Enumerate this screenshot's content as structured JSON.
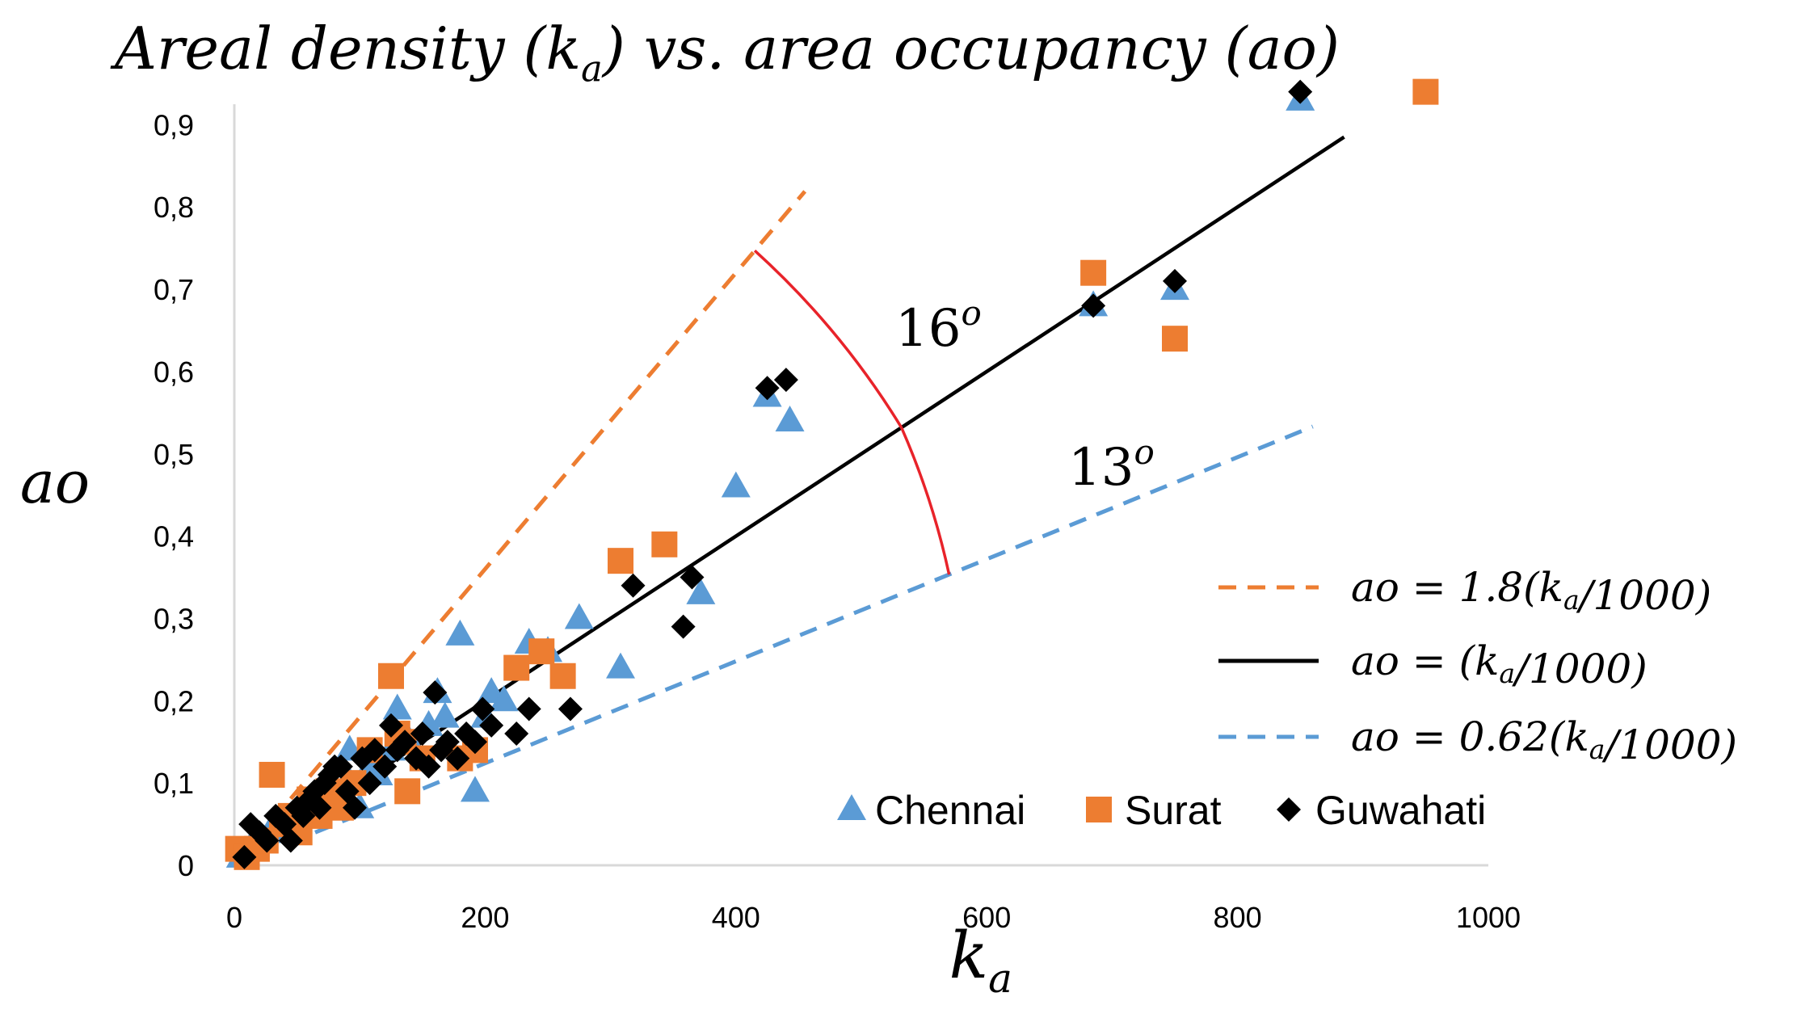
{
  "chart_data": {
    "type": "scatter",
    "title": "Areal density (k_a) vs. area occupancy (ao)",
    "xlabel": "k_a",
    "ylabel": "ao",
    "xlim": [
      0,
      1000
    ],
    "ylim": [
      0,
      0.92
    ],
    "x_ticks": [
      "0",
      "200",
      "400",
      "600",
      "800",
      "1000"
    ],
    "y_ticks": [
      "0",
      "0,1",
      "0,2",
      "0,3",
      "0,4",
      "0,5",
      "0,6",
      "0,7",
      "0,8",
      "0,9"
    ],
    "grid": false,
    "legend_position": "right",
    "reference_lines": [
      {
        "label": "ao = 1.8(k_a/1000)",
        "slope": 0.0018,
        "x_range": [
          0,
          455
        ],
        "color": "#ED7D31",
        "style": "dashed"
      },
      {
        "label": "ao = (k_a/1000)",
        "slope": 0.001,
        "x_range": [
          0,
          885
        ],
        "color": "#000000",
        "style": "solid"
      },
      {
        "label": "ao = 0.62(k_a/1000)",
        "slope": 0.00062,
        "x_range": [
          0,
          860
        ],
        "color": "#5B9BD5",
        "style": "dashed"
      }
    ],
    "angle_annotations": [
      {
        "label": "16",
        "superscript": "o",
        "x_from": 415,
        "x_to": 532
      },
      {
        "label": "13",
        "superscript": "o",
        "x_from": 532,
        "x_to": 570
      }
    ],
    "series": [
      {
        "name": "Chennai",
        "marker": "triangle",
        "color": "#5B9BD5",
        "points": [
          [
            5,
            0.01
          ],
          [
            12,
            0.02
          ],
          [
            20,
            0.03
          ],
          [
            28,
            0.04
          ],
          [
            35,
            0.05
          ],
          [
            42,
            0.04
          ],
          [
            48,
            0.06
          ],
          [
            55,
            0.07
          ],
          [
            62,
            0.08
          ],
          [
            70,
            0.09
          ],
          [
            78,
            0.1
          ],
          [
            85,
            0.12
          ],
          [
            92,
            0.14
          ],
          [
            100,
            0.07
          ],
          [
            108,
            0.12
          ],
          [
            115,
            0.11
          ],
          [
            125,
            0.14
          ],
          [
            130,
            0.19
          ],
          [
            140,
            0.15
          ],
          [
            155,
            0.17
          ],
          [
            162,
            0.21
          ],
          [
            168,
            0.18
          ],
          [
            180,
            0.28
          ],
          [
            192,
            0.09
          ],
          [
            200,
            0.18
          ],
          [
            205,
            0.21
          ],
          [
            215,
            0.2
          ],
          [
            235,
            0.27
          ],
          [
            250,
            0.26
          ],
          [
            275,
            0.3
          ],
          [
            308,
            0.24
          ],
          [
            372,
            0.33
          ],
          [
            400,
            0.46
          ],
          [
            425,
            0.57
          ],
          [
            443,
            0.54
          ],
          [
            685,
            0.68
          ],
          [
            750,
            0.7
          ],
          [
            850,
            0.93
          ]
        ]
      },
      {
        "name": "Surat",
        "marker": "square",
        "color": "#ED7D31",
        "points": [
          [
            3,
            0.02
          ],
          [
            10,
            0.01
          ],
          [
            18,
            0.02
          ],
          [
            25,
            0.03
          ],
          [
            30,
            0.11
          ],
          [
            38,
            0.05
          ],
          [
            45,
            0.06
          ],
          [
            52,
            0.04
          ],
          [
            60,
            0.08
          ],
          [
            68,
            0.06
          ],
          [
            75,
            0.09
          ],
          [
            85,
            0.07
          ],
          [
            95,
            0.1
          ],
          [
            108,
            0.14
          ],
          [
            125,
            0.23
          ],
          [
            130,
            0.16
          ],
          [
            135,
            0.15
          ],
          [
            138,
            0.09
          ],
          [
            150,
            0.13
          ],
          [
            180,
            0.13
          ],
          [
            192,
            0.14
          ],
          [
            225,
            0.24
          ],
          [
            245,
            0.26
          ],
          [
            262,
            0.23
          ],
          [
            308,
            0.37
          ],
          [
            343,
            0.39
          ],
          [
            685,
            0.72
          ],
          [
            750,
            0.64
          ],
          [
            950,
            0.94
          ]
        ]
      },
      {
        "name": "Guwahati",
        "marker": "diamond",
        "color": "#000000",
        "points": [
          [
            8,
            0.01
          ],
          [
            13,
            0.05
          ],
          [
            20,
            0.04
          ],
          [
            26,
            0.03
          ],
          [
            33,
            0.06
          ],
          [
            40,
            0.05
          ],
          [
            45,
            0.03
          ],
          [
            50,
            0.07
          ],
          [
            55,
            0.06
          ],
          [
            60,
            0.08
          ],
          [
            64,
            0.09
          ],
          [
            68,
            0.07
          ],
          [
            72,
            0.1
          ],
          [
            76,
            0.11
          ],
          [
            80,
            0.12
          ],
          [
            85,
            0.12
          ],
          [
            90,
            0.09
          ],
          [
            96,
            0.07
          ],
          [
            102,
            0.13
          ],
          [
            108,
            0.1
          ],
          [
            112,
            0.14
          ],
          [
            120,
            0.12
          ],
          [
            125,
            0.17
          ],
          [
            130,
            0.14
          ],
          [
            136,
            0.15
          ],
          [
            145,
            0.13
          ],
          [
            150,
            0.16
          ],
          [
            155,
            0.12
          ],
          [
            160,
            0.21
          ],
          [
            165,
            0.14
          ],
          [
            170,
            0.15
          ],
          [
            178,
            0.13
          ],
          [
            185,
            0.16
          ],
          [
            192,
            0.15
          ],
          [
            198,
            0.19
          ],
          [
            205,
            0.17
          ],
          [
            225,
            0.16
          ],
          [
            235,
            0.19
          ],
          [
            268,
            0.19
          ],
          [
            318,
            0.34
          ],
          [
            358,
            0.29
          ],
          [
            365,
            0.35
          ],
          [
            425,
            0.58
          ],
          [
            440,
            0.59
          ],
          [
            685,
            0.68
          ],
          [
            750,
            0.71
          ],
          [
            850,
            0.94
          ]
        ]
      }
    ]
  },
  "legend": {
    "lines": [
      {
        "text": "ao = 1.8(k_a/1000)",
        "color": "#ED7D31",
        "style": "dashed"
      },
      {
        "text": "ao = (k_a/1000)",
        "color": "#000000",
        "style": "solid"
      },
      {
        "text": "ao = 0.62(k_a/1000)",
        "color": "#5B9BD5",
        "style": "dashed"
      }
    ],
    "series": [
      "Chennai",
      "Surat",
      "Guwahati"
    ]
  },
  "colors": {
    "axis": "#D9D9D9",
    "annotation": "#E8232A"
  }
}
